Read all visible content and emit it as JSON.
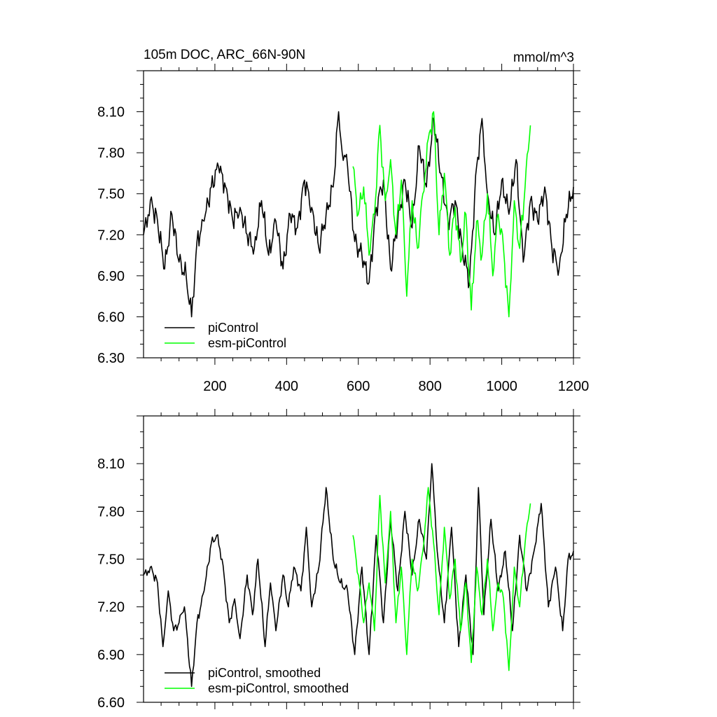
{
  "figure": {
    "title": "105m DOC, ARC_66N-90N",
    "units": "mmol/m^3"
  },
  "colors": {
    "piControl": "#000000",
    "esm_piControl": "#00ff00"
  },
  "chart_data": [
    {
      "type": "line",
      "title": "105m DOC, ARC_66N-90N",
      "units_label": "mmol/m^3",
      "xlabel": "",
      "ylabel": "",
      "xlim": [
        1,
        1200
      ],
      "ylim": [
        6.3,
        8.4
      ],
      "xticks": [
        200,
        400,
        600,
        800,
        1000,
        1200
      ],
      "xtick_labels": [
        "200",
        "400",
        "600",
        "800",
        "1000",
        "1200"
      ],
      "yticks": [
        6.3,
        6.6,
        6.9,
        7.2,
        7.5,
        7.8,
        8.1
      ],
      "ytick_labels": [
        "6.30",
        "6.60",
        "6.90",
        "7.20",
        "7.50",
        "7.80",
        "8.10"
      ],
      "legend_position": "bottom-left",
      "series": [
        {
          "name": "piControl",
          "color": "#000000",
          "x": [
            1,
            20,
            40,
            60,
            80,
            100,
            120,
            135,
            150,
            170,
            190,
            210,
            230,
            250,
            270,
            290,
            310,
            330,
            350,
            370,
            390,
            410,
            430,
            450,
            470,
            490,
            510,
            530,
            545,
            555,
            570,
            590,
            610,
            630,
            650,
            670,
            690,
            710,
            730,
            750,
            770,
            790,
            810,
            830,
            850,
            870,
            890,
            910,
            930,
            945,
            960,
            980,
            1000,
            1020,
            1040,
            1060,
            1080,
            1100,
            1120,
            1140,
            1160,
            1180,
            1200
          ],
          "y": [
            7.2,
            7.45,
            7.3,
            6.95,
            7.35,
            7.0,
            6.9,
            6.6,
            7.15,
            7.3,
            7.55,
            7.7,
            7.55,
            7.3,
            7.4,
            7.2,
            7.1,
            7.45,
            7.05,
            7.3,
            6.95,
            7.35,
            7.25,
            7.6,
            7.4,
            7.1,
            7.35,
            7.55,
            8.1,
            7.8,
            7.7,
            7.15,
            7.05,
            6.85,
            7.4,
            7.6,
            6.95,
            7.3,
            7.6,
            7.25,
            7.85,
            7.55,
            8.05,
            7.65,
            7.3,
            7.45,
            7.1,
            6.85,
            7.7,
            8.05,
            7.5,
            7.2,
            7.6,
            7.35,
            7.75,
            7.0,
            7.45,
            7.3,
            7.55,
            7.1,
            6.95,
            7.35,
            7.55
          ]
        },
        {
          "name": "esm-piControl",
          "color": "#00ff00",
          "x": [
            585,
            600,
            615,
            630,
            645,
            660,
            675,
            690,
            705,
            720,
            735,
            750,
            765,
            780,
            795,
            810,
            825,
            840,
            855,
            870,
            885,
            900,
            915,
            930,
            945,
            960,
            975,
            990,
            1005,
            1020,
            1035,
            1050,
            1065,
            1080
          ],
          "y": [
            7.7,
            7.35,
            7.55,
            7.05,
            7.35,
            8.0,
            7.45,
            7.75,
            7.2,
            7.6,
            6.75,
            7.45,
            7.1,
            7.5,
            7.9,
            8.1,
            7.2,
            7.65,
            7.05,
            7.4,
            7.0,
            7.35,
            6.65,
            7.3,
            7.05,
            7.5,
            6.9,
            7.35,
            7.1,
            6.6,
            7.45,
            7.1,
            7.55,
            8.0
          ]
        }
      ]
    },
    {
      "type": "line",
      "title": "",
      "xlabel": "",
      "ylabel": "",
      "xlim": [
        1,
        1200
      ],
      "ylim": [
        6.6,
        8.4
      ],
      "xticks": [
        200,
        400,
        600,
        800,
        1000,
        1200
      ],
      "yticks": [
        6.6,
        6.9,
        7.2,
        7.5,
        7.8,
        8.1
      ],
      "ytick_labels": [
        "6.60",
        "6.90",
        "7.20",
        "7.50",
        "7.80",
        "8.10"
      ],
      "legend_position": "bottom-left",
      "series": [
        {
          "name": "piControl, smoothed",
          "color": "#000000",
          "x": [
            1,
            20,
            40,
            55,
            70,
            85,
            100,
            115,
            135,
            150,
            170,
            190,
            205,
            220,
            240,
            255,
            270,
            290,
            305,
            320,
            340,
            355,
            370,
            390,
            405,
            420,
            440,
            455,
            470,
            490,
            510,
            530,
            550,
            570,
            590,
            610,
            630,
            650,
            670,
            690,
            710,
            730,
            750,
            770,
            790,
            805,
            820,
            840,
            860,
            880,
            900,
            920,
            935,
            950,
            970,
            990,
            1010,
            1030,
            1050,
            1070,
            1090,
            1110,
            1130,
            1150,
            1170,
            1185,
            1200
          ],
          "y": [
            7.4,
            7.45,
            7.35,
            6.95,
            7.3,
            7.05,
            7.1,
            7.2,
            6.7,
            7.1,
            7.3,
            7.6,
            7.65,
            7.5,
            7.1,
            7.25,
            7.0,
            7.4,
            7.15,
            7.5,
            6.95,
            7.35,
            7.05,
            7.4,
            7.2,
            7.45,
            7.3,
            7.7,
            7.2,
            7.45,
            7.95,
            7.5,
            7.35,
            7.3,
            6.9,
            7.45,
            6.9,
            7.65,
            7.1,
            7.75,
            7.3,
            7.8,
            7.4,
            7.75,
            7.5,
            8.1,
            7.55,
            7.1,
            7.7,
            6.95,
            7.4,
            6.9,
            7.95,
            7.15,
            7.75,
            7.3,
            7.55,
            7.05,
            7.65,
            7.3,
            7.55,
            7.85,
            7.2,
            7.45,
            7.05,
            7.5,
            7.55
          ]
        },
        {
          "name": "esm-piControl, smoothed",
          "color": "#00ff00",
          "x": [
            585,
            600,
            615,
            630,
            645,
            660,
            675,
            690,
            705,
            720,
            735,
            750,
            765,
            780,
            795,
            810,
            825,
            840,
            855,
            870,
            885,
            900,
            915,
            930,
            945,
            960,
            975,
            990,
            1005,
            1020,
            1035,
            1050,
            1065,
            1080
          ],
          "y": [
            7.65,
            7.4,
            7.1,
            7.35,
            7.05,
            7.9,
            7.35,
            7.8,
            7.1,
            7.45,
            6.9,
            7.5,
            7.3,
            7.55,
            7.95,
            7.6,
            7.15,
            7.7,
            7.25,
            7.5,
            7.05,
            7.35,
            6.85,
            7.45,
            7.15,
            7.5,
            7.05,
            7.35,
            7.25,
            6.8,
            7.45,
            7.2,
            7.6,
            7.85
          ]
        }
      ]
    }
  ]
}
